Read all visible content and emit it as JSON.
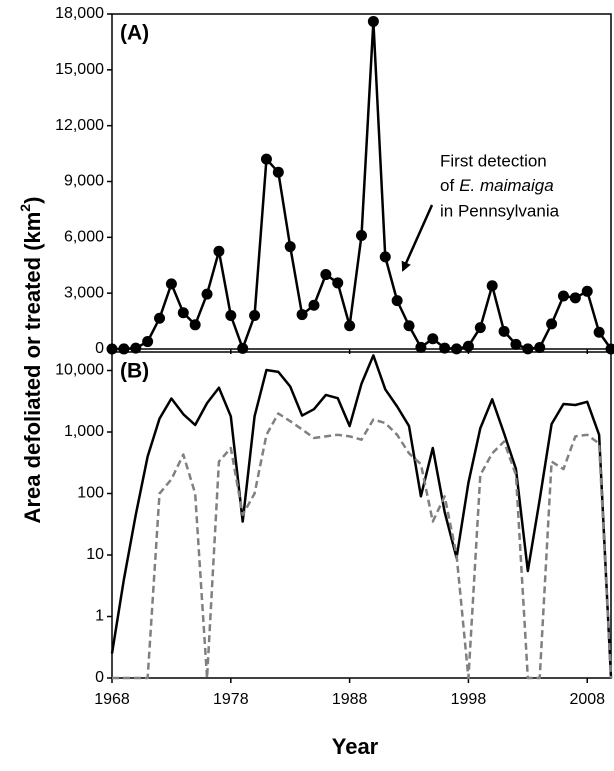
{
  "shared": {
    "x_label": "Year",
    "y_label": [
      "Area defoliated or treated (km",
      "2",
      ")"
    ]
  },
  "chart_data": [
    {
      "type": "line",
      "panel_label": "(A)",
      "yscale": "linear",
      "markers": true,
      "annotation": [
        "First detection",
        "of",
        "E. maimaiga",
        "in Pennsylvania"
      ],
      "x": [
        1968,
        1969,
        1970,
        1971,
        1972,
        1973,
        1974,
        1975,
        1976,
        1977,
        1978,
        1979,
        1980,
        1981,
        1982,
        1983,
        1984,
        1985,
        1986,
        1987,
        1988,
        1989,
        1990,
        1991,
        1992,
        1993,
        1994,
        1995,
        1996,
        1997,
        1998,
        1999,
        2000,
        2001,
        2002,
        2003,
        2004,
        2005,
        2006,
        2007,
        2008,
        2009,
        2010
      ],
      "series": [
        {
          "color": "#000000",
          "values": [
            0.25,
            4,
            45,
            400,
            1650,
            3500,
            1950,
            1300,
            2950,
            5250,
            1800,
            35,
            1800,
            10200,
            9500,
            5500,
            1850,
            2350,
            4000,
            3550,
            1250,
            6100,
            17600,
            4950,
            2600,
            1250,
            90,
            550,
            50,
            9,
            150,
            1150,
            3400,
            950,
            250,
            5.5,
            80,
            1350,
            2850,
            2750,
            3100,
            900,
            0
          ]
        }
      ],
      "xlim": [
        1968,
        2010
      ],
      "xticks": [
        1968,
        1978,
        1988,
        1998,
        2008
      ],
      "ylim": [
        0,
        18000
      ],
      "yticks": [
        0,
        {
          "value": 3000,
          "label": "3,000"
        },
        {
          "value": 6000,
          "label": "6,000"
        },
        {
          "value": 9000,
          "label": "9,000"
        },
        {
          "value": 12000,
          "label": "12,000"
        },
        {
          "value": 15000,
          "label": "15,000"
        },
        {
          "value": 18000,
          "label": "18,000"
        }
      ]
    },
    {
      "type": "line",
      "panel_label": "(B)",
      "yscale": "log",
      "markers": false,
      "x": [
        1968,
        1969,
        1970,
        1971,
        1972,
        1973,
        1974,
        1975,
        1976,
        1977,
        1978,
        1979,
        1980,
        1981,
        1982,
        1983,
        1984,
        1985,
        1986,
        1987,
        1988,
        1989,
        1990,
        1991,
        1992,
        1993,
        1994,
        1995,
        1996,
        1997,
        1998,
        1999,
        2000,
        2001,
        2002,
        2003,
        2004,
        2005,
        2006,
        2007,
        2008,
        2009,
        2010
      ],
      "series": [
        {
          "color": "#000000",
          "values": [
            0.25,
            4,
            45,
            400,
            1650,
            3500,
            1950,
            1300,
            2950,
            5250,
            1800,
            35,
            1800,
            10200,
            9500,
            5500,
            1850,
            2350,
            4000,
            3550,
            1250,
            6100,
            17600,
            4950,
            2600,
            1250,
            90,
            550,
            50,
            9,
            150,
            1150,
            3400,
            950,
            250,
            5.5,
            80,
            1350,
            2850,
            2750,
            3100,
            900,
            0
          ]
        },
        {
          "color": "#808080",
          "dash": true,
          "values": [
            0,
            0,
            0,
            0,
            100,
            170,
            430,
            100,
            0,
            330,
            550,
            45,
            100,
            900,
            2000,
            1500,
            1100,
            800,
            850,
            900,
            850,
            750,
            1600,
            1400,
            900,
            450,
            300,
            35,
            90,
            10,
            0,
            200,
            450,
            700,
            200,
            0,
            0,
            330,
            250,
            850,
            900,
            650,
            0
          ]
        }
      ],
      "xlim": [
        1968,
        2010
      ],
      "xticks": [
        1968,
        1978,
        1988,
        1998,
        2008
      ],
      "ylim": [
        0,
        20000
      ],
      "yticks": [
        0,
        1,
        10,
        100,
        {
          "value": 1000,
          "label": "1,000"
        },
        {
          "value": 10000,
          "label": "10,000"
        }
      ]
    }
  ]
}
